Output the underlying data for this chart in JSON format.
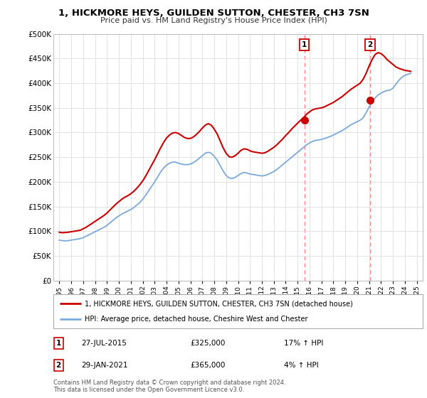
{
  "title": "1, HICKMORE HEYS, GUILDEN SUTTON, CHESTER, CH3 7SN",
  "subtitle": "Price paid vs. HM Land Registry's House Price Index (HPI)",
  "legend_line1": "1, HICKMORE HEYS, GUILDEN SUTTON, CHESTER, CH3 7SN (detached house)",
  "legend_line2": "HPI: Average price, detached house, Cheshire West and Chester",
  "sale1_label": "1",
  "sale1_date": "27-JUL-2015",
  "sale1_price": "£325,000",
  "sale1_hpi": "17% ↑ HPI",
  "sale1_x": 2015.57,
  "sale1_y": 325000,
  "sale2_label": "2",
  "sale2_date": "29-JAN-2021",
  "sale2_price": "£365,000",
  "sale2_hpi": "4% ↑ HPI",
  "sale2_x": 2021.08,
  "sale2_y": 365000,
  "ylim": [
    0,
    500000
  ],
  "xlim": [
    1994.5,
    2025.5
  ],
  "yticks": [
    0,
    50000,
    100000,
    150000,
    200000,
    250000,
    300000,
    350000,
    400000,
    450000,
    500000
  ],
  "ytick_labels": [
    "£0",
    "£50K",
    "£100K",
    "£150K",
    "£200K",
    "£250K",
    "£300K",
    "£350K",
    "£400K",
    "£450K",
    "£500K"
  ],
  "xticks": [
    1995,
    1996,
    1997,
    1998,
    1999,
    2000,
    2001,
    2002,
    2003,
    2004,
    2005,
    2006,
    2007,
    2008,
    2009,
    2010,
    2011,
    2012,
    2013,
    2014,
    2015,
    2016,
    2017,
    2018,
    2019,
    2020,
    2021,
    2022,
    2023,
    2024,
    2025
  ],
  "red_line_color": "#cc0000",
  "blue_line_color": "#7aaadd",
  "sale_marker_color": "#cc0000",
  "dashed_line_color": "#ff8888",
  "background_color": "#ffffff",
  "grid_color": "#dddddd",
  "footer": "Contains HM Land Registry data © Crown copyright and database right 2024.\nThis data is licensed under the Open Government Licence v3.0.",
  "hpi_data_x": [
    1995.0,
    1995.25,
    1995.5,
    1995.75,
    1996.0,
    1996.25,
    1996.5,
    1996.75,
    1997.0,
    1997.25,
    1997.5,
    1997.75,
    1998.0,
    1998.25,
    1998.5,
    1998.75,
    1999.0,
    1999.25,
    1999.5,
    1999.75,
    2000.0,
    2000.25,
    2000.5,
    2000.75,
    2001.0,
    2001.25,
    2001.5,
    2001.75,
    2002.0,
    2002.25,
    2002.5,
    2002.75,
    2003.0,
    2003.25,
    2003.5,
    2003.75,
    2004.0,
    2004.25,
    2004.5,
    2004.75,
    2005.0,
    2005.25,
    2005.5,
    2005.75,
    2006.0,
    2006.25,
    2006.5,
    2006.75,
    2007.0,
    2007.25,
    2007.5,
    2007.75,
    2008.0,
    2008.25,
    2008.5,
    2008.75,
    2009.0,
    2009.25,
    2009.5,
    2009.75,
    2010.0,
    2010.25,
    2010.5,
    2010.75,
    2011.0,
    2011.25,
    2011.5,
    2011.75,
    2012.0,
    2012.25,
    2012.5,
    2012.75,
    2013.0,
    2013.25,
    2013.5,
    2013.75,
    2014.0,
    2014.25,
    2014.5,
    2014.75,
    2015.0,
    2015.25,
    2015.5,
    2015.75,
    2016.0,
    2016.25,
    2016.5,
    2016.75,
    2017.0,
    2017.25,
    2017.5,
    2017.75,
    2018.0,
    2018.25,
    2018.5,
    2018.75,
    2019.0,
    2019.25,
    2019.5,
    2019.75,
    2020.0,
    2020.25,
    2020.5,
    2020.75,
    2021.0,
    2021.25,
    2021.5,
    2021.75,
    2022.0,
    2022.25,
    2022.5,
    2022.75,
    2023.0,
    2023.25,
    2023.5,
    2023.75,
    2024.0,
    2024.25,
    2024.5
  ],
  "hpi_data_y": [
    82000,
    81000,
    80500,
    81000,
    82000,
    83000,
    84000,
    85000,
    87000,
    90000,
    93000,
    96000,
    99000,
    102000,
    105000,
    108000,
    112000,
    117000,
    122000,
    127000,
    131000,
    135000,
    138000,
    141000,
    144000,
    148000,
    153000,
    158000,
    165000,
    173000,
    182000,
    191000,
    200000,
    210000,
    220000,
    228000,
    234000,
    238000,
    240000,
    240000,
    238000,
    236000,
    235000,
    235000,
    236000,
    239000,
    243000,
    248000,
    253000,
    258000,
    260000,
    258000,
    252000,
    244000,
    233000,
    222000,
    213000,
    208000,
    207000,
    209000,
    213000,
    217000,
    219000,
    218000,
    216000,
    215000,
    214000,
    213000,
    212000,
    213000,
    215000,
    218000,
    221000,
    225000,
    230000,
    235000,
    240000,
    245000,
    250000,
    255000,
    260000,
    265000,
    270000,
    275000,
    279000,
    282000,
    284000,
    285000,
    286000,
    288000,
    290000,
    292000,
    295000,
    298000,
    301000,
    304000,
    308000,
    312000,
    316000,
    319000,
    322000,
    325000,
    330000,
    340000,
    352000,
    362000,
    370000,
    376000,
    380000,
    383000,
    385000,
    386000,
    390000,
    398000,
    406000,
    412000,
    416000,
    418000,
    420000
  ],
  "red_data_x": [
    1995.0,
    1995.25,
    1995.5,
    1995.75,
    1996.0,
    1996.25,
    1996.5,
    1996.75,
    1997.0,
    1997.25,
    1997.5,
    1997.75,
    1998.0,
    1998.25,
    1998.5,
    1998.75,
    1999.0,
    1999.25,
    1999.5,
    1999.75,
    2000.0,
    2000.25,
    2000.5,
    2000.75,
    2001.0,
    2001.25,
    2001.5,
    2001.75,
    2002.0,
    2002.25,
    2002.5,
    2002.75,
    2003.0,
    2003.25,
    2003.5,
    2003.75,
    2004.0,
    2004.25,
    2004.5,
    2004.75,
    2005.0,
    2005.25,
    2005.5,
    2005.75,
    2006.0,
    2006.25,
    2006.5,
    2006.75,
    2007.0,
    2007.25,
    2007.5,
    2007.75,
    2008.0,
    2008.25,
    2008.5,
    2008.75,
    2009.0,
    2009.25,
    2009.5,
    2009.75,
    2010.0,
    2010.25,
    2010.5,
    2010.75,
    2011.0,
    2011.25,
    2011.5,
    2011.75,
    2012.0,
    2012.25,
    2012.5,
    2012.75,
    2013.0,
    2013.25,
    2013.5,
    2013.75,
    2014.0,
    2014.25,
    2014.5,
    2014.75,
    2015.0,
    2015.25,
    2015.5,
    2015.75,
    2016.0,
    2016.25,
    2016.5,
    2016.75,
    2017.0,
    2017.25,
    2017.5,
    2017.75,
    2018.0,
    2018.25,
    2018.5,
    2018.75,
    2019.0,
    2019.25,
    2019.5,
    2019.75,
    2020.0,
    2020.25,
    2020.5,
    2020.75,
    2021.0,
    2021.25,
    2021.5,
    2021.75,
    2022.0,
    2022.25,
    2022.5,
    2022.75,
    2023.0,
    2023.25,
    2023.5,
    2023.75,
    2024.0,
    2024.25,
    2024.5
  ],
  "red_data_y": [
    98000,
    97000,
    97500,
    98000,
    99000,
    100000,
    101000,
    102000,
    105000,
    108000,
    112000,
    116000,
    120000,
    124000,
    128000,
    132000,
    137000,
    143000,
    149000,
    155000,
    160000,
    165000,
    169000,
    172000,
    176000,
    181000,
    187000,
    194000,
    202000,
    212000,
    223000,
    234000,
    245000,
    257000,
    269000,
    280000,
    289000,
    295000,
    299000,
    300000,
    298000,
    294000,
    290000,
    288000,
    288000,
    291000,
    296000,
    302000,
    309000,
    315000,
    318000,
    315000,
    307000,
    297000,
    283000,
    269000,
    258000,
    251000,
    250000,
    253000,
    258000,
    264000,
    267000,
    266000,
    263000,
    261000,
    260000,
    259000,
    258000,
    259000,
    262000,
    266000,
    270000,
    275000,
    281000,
    287000,
    294000,
    300000,
    307000,
    313000,
    319000,
    325000,
    330000,
    337000,
    342000,
    346000,
    348000,
    349000,
    350000,
    352000,
    355000,
    358000,
    361000,
    365000,
    369000,
    373000,
    378000,
    383000,
    388000,
    392000,
    396000,
    400000,
    408000,
    420000,
    435000,
    448000,
    458000,
    462000,
    460000,
    455000,
    448000,
    443000,
    438000,
    433000,
    430000,
    428000,
    426000,
    425000,
    424000
  ]
}
